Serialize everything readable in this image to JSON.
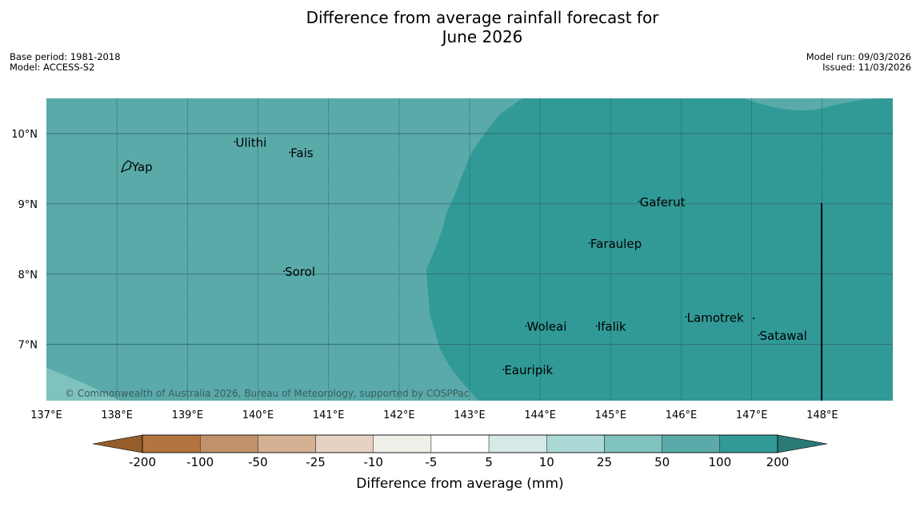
{
  "title": {
    "line1": "Difference from average rainfall forecast for",
    "line2": "June 2026"
  },
  "meta": {
    "base_period": "Base period: 1981-2018",
    "model": "Model: ACCESS-S2",
    "model_run": "Model run: 09/03/2026",
    "issued": "Issued: 11/03/2026"
  },
  "map": {
    "extent": {
      "lon": [
        137.0,
        149.0
      ],
      "lat": [
        6.2,
        10.5
      ]
    },
    "lon_ticks": [
      {
        "value": 137,
        "label": "137°E"
      },
      {
        "value": 138,
        "label": "138°E"
      },
      {
        "value": 139,
        "label": "139°E"
      },
      {
        "value": 140,
        "label": "140°E"
      },
      {
        "value": 141,
        "label": "141°E"
      },
      {
        "value": 142,
        "label": "142°E"
      },
      {
        "value": 143,
        "label": "143°E"
      },
      {
        "value": 144,
        "label": "144°E"
      },
      {
        "value": 145,
        "label": "145°E"
      },
      {
        "value": 146,
        "label": "146°E"
      },
      {
        "value": 147,
        "label": "147°E"
      },
      {
        "value": 148,
        "label": "148°E"
      }
    ],
    "lat_ticks": [
      {
        "value": 10,
        "label": "10°N"
      },
      {
        "value": 9,
        "label": "9°N"
      },
      {
        "value": 8,
        "label": "8°N"
      },
      {
        "value": 7,
        "label": "7°N"
      }
    ],
    "places": [
      {
        "name": "Yap",
        "lon": 138.2,
        "lat": 9.52
      },
      {
        "name": "Ulithi",
        "lon": 139.67,
        "lat": 9.87
      },
      {
        "name": "Fais",
        "lon": 140.45,
        "lat": 9.72
      },
      {
        "name": "Sorol",
        "lon": 140.37,
        "lat": 8.03
      },
      {
        "name": "Gaferut",
        "lon": 145.4,
        "lat": 9.02
      },
      {
        "name": "Faraulep",
        "lon": 144.7,
        "lat": 8.43
      },
      {
        "name": "Lamotrek",
        "lon": 146.07,
        "lat": 7.38
      },
      {
        "name": "Woleai",
        "lon": 143.8,
        "lat": 7.25
      },
      {
        "name": "Ifalik",
        "lon": 144.8,
        "lat": 7.25
      },
      {
        "name": "Satawal",
        "lon": 147.1,
        "lat": 7.12
      },
      {
        "name": "Eauripik",
        "lon": 143.48,
        "lat": 6.63
      }
    ],
    "copyright": "© Commonwealth of Australia 2026, Bureau of Meteorology, supported by COSPPac"
  },
  "colorbar": {
    "title": "Difference from average (mm)",
    "tick_labels": [
      "-200",
      "-100",
      "-50",
      "-25",
      "-10",
      "-5",
      "5",
      "10",
      "25",
      "50",
      "100",
      "200"
    ],
    "colors": [
      "#955e2c",
      "#b27540",
      "#c19169",
      "#d4b192",
      "#e5d2c2",
      "#f1efea",
      "#ffffff",
      "#d6e9e7",
      "#acd8d5",
      "#80c2be",
      "#5aaaaa",
      "#319a97",
      "#2a7a77"
    ]
  }
}
